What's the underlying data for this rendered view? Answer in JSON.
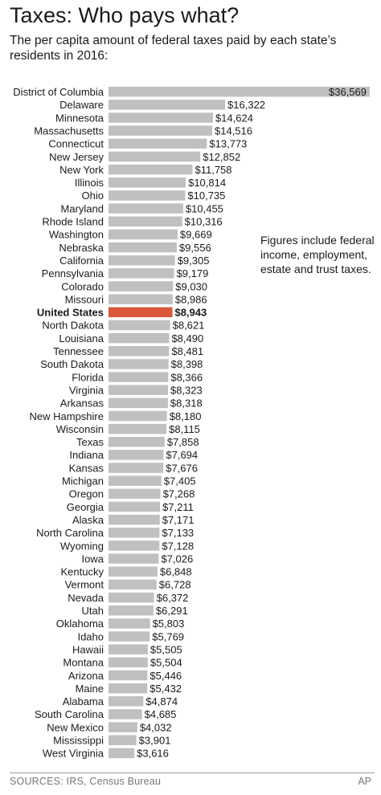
{
  "title": "Taxes: Who pays what?",
  "subtitle": "The per capita amount of federal taxes paid by each state’s residents in 2016:",
  "note": "Figures include federal income, employment, estate and trust taxes.",
  "sources": "SOURCES: IRS, Census Bureau",
  "credit": "AP",
  "colors": {
    "bar": "#c0c0c0",
    "highlight": "#d9583a"
  },
  "chart_data": {
    "type": "bar",
    "orientation": "horizontal",
    "highlight": "United States",
    "categories": [
      "District of Columbia",
      "Delaware",
      "Minnesota",
      "Massachusetts",
      "Connecticut",
      "New Jersey",
      "New York",
      "Illinois",
      "Ohio",
      "Maryland",
      "Rhode Island",
      "Washington",
      "Nebraska",
      "California",
      "Pennsylvania",
      "Colorado",
      "Missouri",
      "United States",
      "North Dakota",
      "Louisiana",
      "Tennessee",
      "South Dakota",
      "Florida",
      "Virginia",
      "Arkansas",
      "New Hampshire",
      "Wisconsin",
      "Texas",
      "Indiana",
      "Kansas",
      "Michigan",
      "Oregon",
      "Georgia",
      "Alaska",
      "North Carolina",
      "Wyoming",
      "Iowa",
      "Kentucky",
      "Vermont",
      "Nevada",
      "Utah",
      "Oklahoma",
      "Idaho",
      "Hawaii",
      "Montana",
      "Arizona",
      "Maine",
      "Alabama",
      "South Carolina",
      "New Mexico",
      "Mississippi",
      "West Virginia"
    ],
    "values": [
      36569,
      16322,
      14624,
      14516,
      13773,
      12852,
      11758,
      10814,
      10735,
      10455,
      10316,
      9669,
      9556,
      9305,
      9179,
      9030,
      8986,
      8943,
      8621,
      8490,
      8481,
      8398,
      8366,
      8323,
      8318,
      8180,
      8115,
      7858,
      7694,
      7676,
      7405,
      7268,
      7211,
      7171,
      7133,
      7128,
      7026,
      6848,
      6728,
      6372,
      6291,
      5803,
      5769,
      5505,
      5504,
      5446,
      5432,
      4874,
      4685,
      4032,
      3901,
      3616
    ],
    "labels": [
      "$36,569",
      "$16,322",
      "$14,624",
      "$14,516",
      "$13,773",
      "$12,852",
      "$11,758",
      "$10,814",
      "$10,735",
      "$10,455",
      "$10,316",
      "$9,669",
      "$9,556",
      "$9,305",
      "$9,179",
      "$9,030",
      "$8,986",
      "$8,943",
      "$8,621",
      "$8,490",
      "$8,481",
      "$8,398",
      "$8,366",
      "$8,323",
      "$8,318",
      "$8,180",
      "$8,115",
      "$7,858",
      "$7,694",
      "$7,676",
      "$7,405",
      "$7,268",
      "$7,211",
      "$7,171",
      "$7,133",
      "$7,128",
      "$7,026",
      "$6,848",
      "$6,728",
      "$6,372",
      "$6,291",
      "$5,803",
      "$5,769",
      "$5,505",
      "$5,504",
      "$5,446",
      "$5,432",
      "$4,874",
      "$4,685",
      "$4,032",
      "$3,901",
      "$3,616"
    ],
    "xlim": [
      0,
      36569
    ],
    "grid": false,
    "legend": false
  }
}
